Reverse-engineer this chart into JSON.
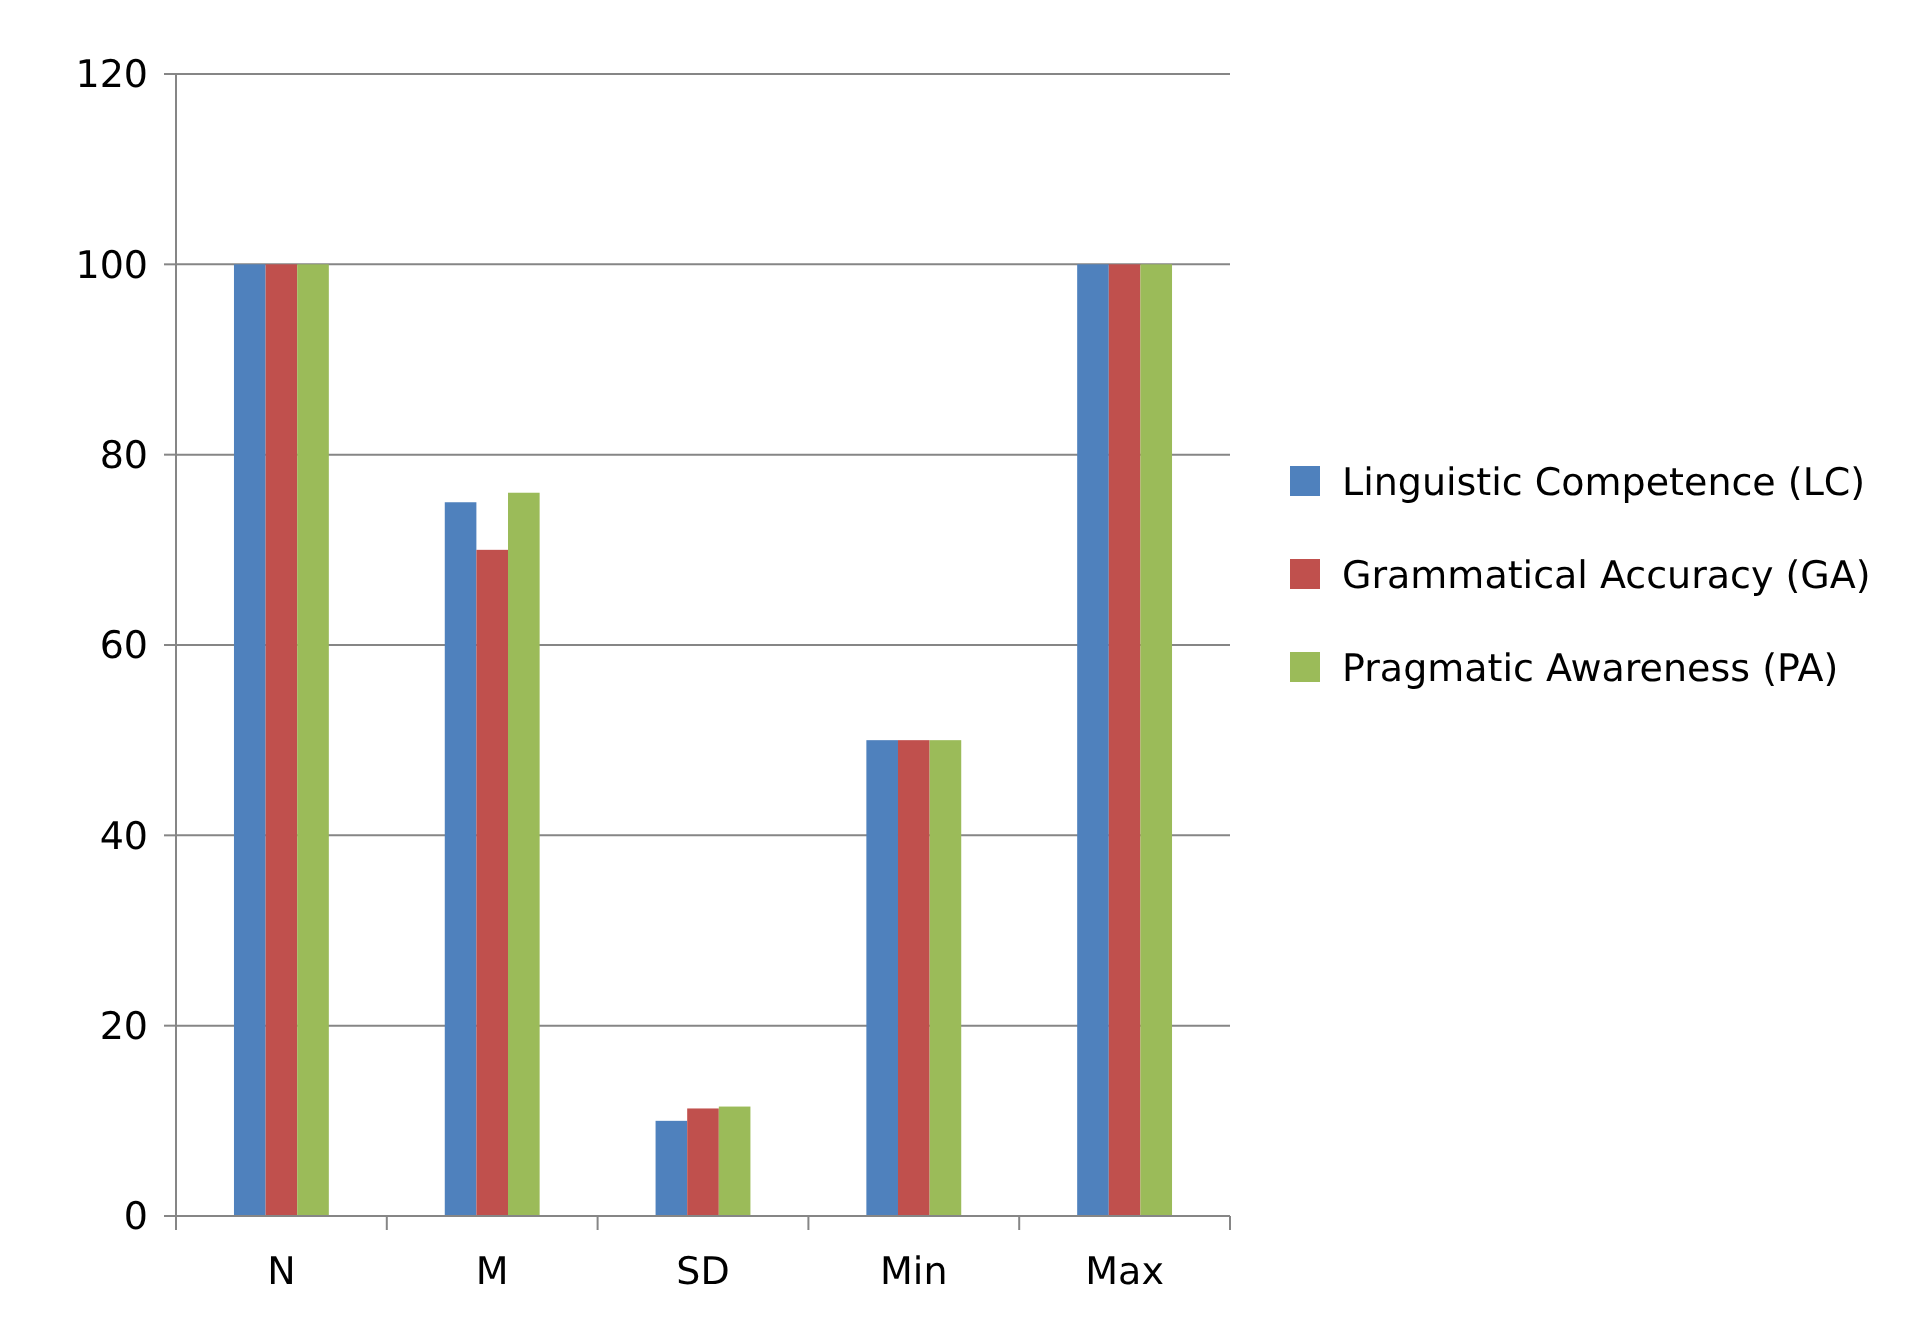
{
  "chart_data": {
    "type": "bar",
    "categories": [
      "N",
      "M",
      "SD",
      "Min",
      "Max"
    ],
    "series": [
      {
        "name": "Linguistic Competence (LC)",
        "color": "#4f81bd",
        "values": [
          100,
          75,
          10,
          50,
          100
        ]
      },
      {
        "name": "Grammatical Accuracy (GA)",
        "color": "#c0504d",
        "values": [
          100,
          70,
          11.3,
          50,
          100
        ]
      },
      {
        "name": "Pragmatic Awareness (PA)",
        "color": "#9bbb59",
        "values": [
          100,
          76,
          11.5,
          50,
          100
        ]
      }
    ],
    "ylim": [
      0,
      120
    ],
    "yticks": [
      0,
      20,
      40,
      60,
      80,
      100,
      120
    ],
    "grid": "y",
    "legend": "right"
  }
}
